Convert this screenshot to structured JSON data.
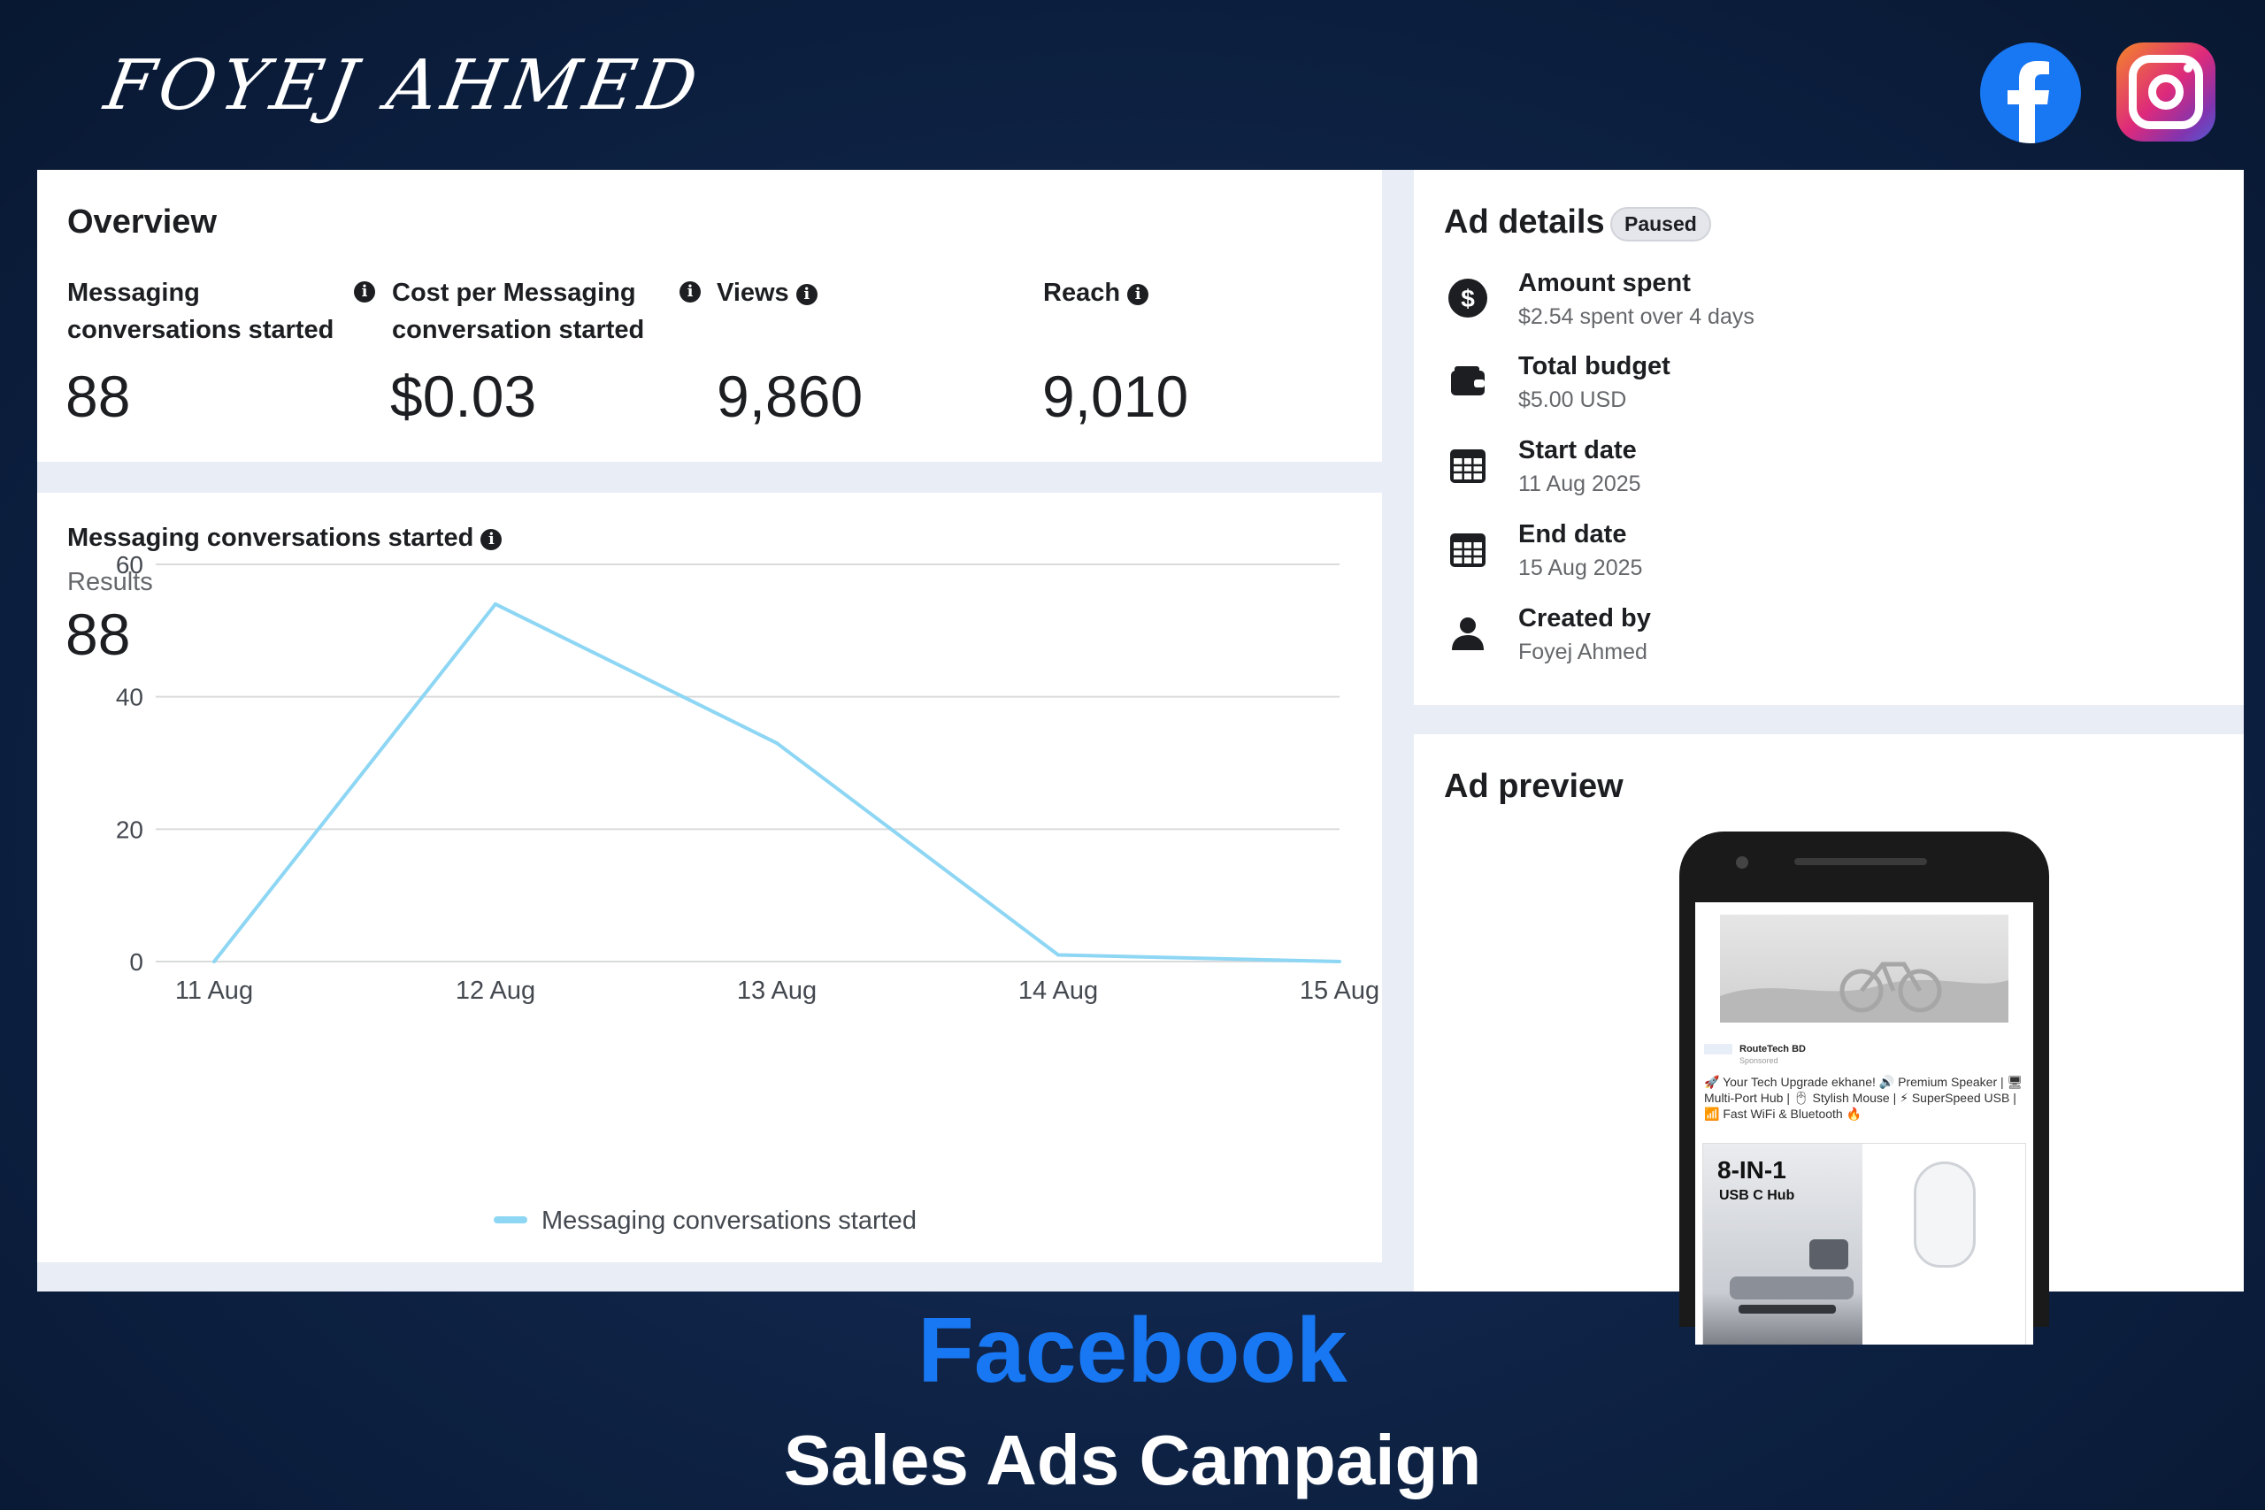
{
  "header": {
    "brand_name": "FOYEJ AHMED",
    "social_icons": [
      "facebook-icon",
      "instagram-icon"
    ]
  },
  "overview": {
    "title": "Overview",
    "metrics": [
      {
        "label_line1": "Messaging",
        "label_line2": "conversations started",
        "value": "88"
      },
      {
        "label_line1": "Cost per Messaging",
        "label_line2": "conversation started",
        "value": "$0.03"
      },
      {
        "label_line1": "Views",
        "label_line2": "",
        "value": "9,860"
      },
      {
        "label_line1": "Reach",
        "label_line2": "",
        "value": "9,010"
      }
    ]
  },
  "chart_section": {
    "title": "Messaging conversations started",
    "results_label": "Results",
    "results_value": "88"
  },
  "chart_data": {
    "type": "line",
    "x": [
      "11 Aug",
      "12 Aug",
      "13 Aug",
      "14 Aug",
      "15 Aug"
    ],
    "series": [
      {
        "name": "Messaging conversations started",
        "values": [
          0,
          54,
          33,
          1,
          0
        ]
      }
    ],
    "yticks": [
      0,
      20,
      40,
      60
    ],
    "ylim": [
      0,
      60
    ],
    "grid": true,
    "legend": "bottom-center",
    "color": "#8dd6f4"
  },
  "ad_details": {
    "title": "Ad details",
    "status": "Paused",
    "rows": [
      {
        "icon": "dollar-icon",
        "label": "Amount spent",
        "value": "$2.54 spent over 4 days"
      },
      {
        "icon": "wallet-icon",
        "label": "Total budget",
        "value": "$5.00 USD"
      },
      {
        "icon": "calendar-icon",
        "label": "Start date",
        "value": "11 Aug 2025"
      },
      {
        "icon": "calendar-icon",
        "label": "End date",
        "value": "15 Aug 2025"
      },
      {
        "icon": "person-icon",
        "label": "Created by",
        "value": "Foyej Ahmed"
      }
    ]
  },
  "ad_preview": {
    "title": "Ad preview",
    "page_name": "RouteTech BD",
    "sponsored": "Sponsored",
    "text": "🚀 Your Tech Upgrade ekhane! 🔊 Premium Speaker | 🖥 Multi-Port Hub | 🖱 Stylish Mouse | ⚡ SuperSpeed USB | 📶 Fast WiFi & Bluetooth 🔥",
    "product_title": "8-IN-1",
    "product_sub": "USB C Hub"
  },
  "footer": {
    "platform": "Facebook",
    "campaign": "Sales Ads Campaign"
  },
  "colors": {
    "background": "#0f2448",
    "facebook_blue": "#1877f2",
    "chart_line": "#8dd6f4"
  }
}
